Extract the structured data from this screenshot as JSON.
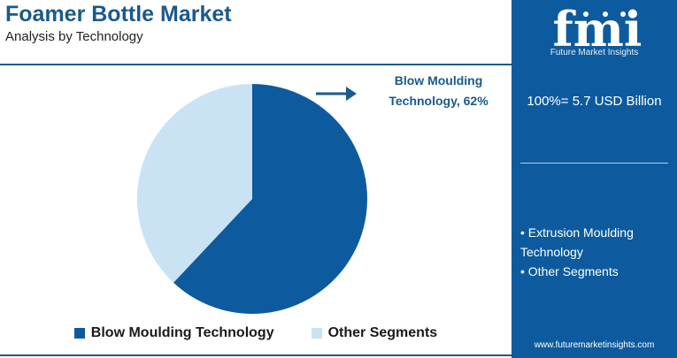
{
  "header": {
    "title": "Foamer Bottle Market",
    "subtitle": "Analysis by Technology"
  },
  "callout": {
    "line1": "Blow Moulding",
    "line2": "Technology, 62%"
  },
  "chart_data": {
    "type": "pie",
    "slices": [
      {
        "name": "Blow Moulding Technology",
        "value": 62,
        "color": "#0d5b9e"
      },
      {
        "name": "Other Segments",
        "value": 38,
        "color": "#c9e3f5"
      }
    ],
    "title": "Foamer Bottle Market",
    "subtitle": "Analysis by Technology",
    "legend_position": "bottom",
    "start_angle_deg": 0,
    "direction": "clockwise"
  },
  "legend": [
    {
      "label": "Blow Moulding Technology",
      "color": "#0d5b9e"
    },
    {
      "label": "Other Segments",
      "color": "#c9e3f5"
    }
  ],
  "panel": {
    "logo_letters": "fmi",
    "logo_text": "Future Market Insights",
    "total": "100%= 5.7 USD Billion",
    "other_items": [
      "• Extrusion Moulding Technology",
      "• Other Segments"
    ],
    "url": "www.futuremarketinsights.com"
  },
  "colors": {
    "brand": "#0d5b9e",
    "title": "#1a5a8a",
    "light_slice": "#c9e3f5"
  }
}
